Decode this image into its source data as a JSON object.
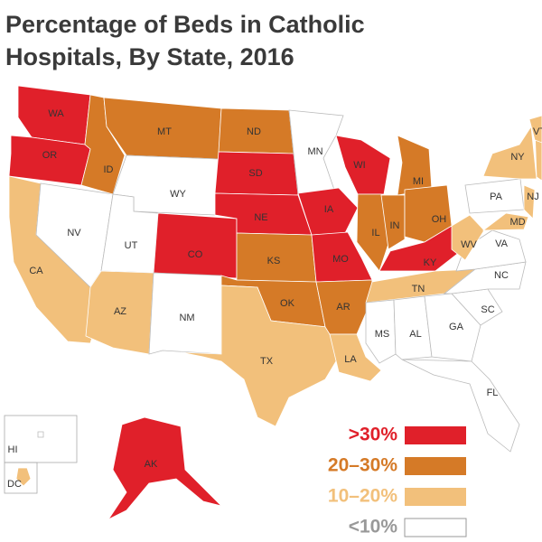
{
  "title": [
    "Percentage of Beds in Catholic",
    "Hospitals, By State, 2016"
  ],
  "legend": [
    {
      "label": ">30%",
      "color": "#e0202a",
      "text_color": "#e0202a"
    },
    {
      "label": "20–30%",
      "color": "#d57a27",
      "text_color": "#d57a27"
    },
    {
      "label": "10–20%",
      "color": "#f2c07b",
      "text_color": "#f2c07b"
    },
    {
      "label": "<10%",
      "color": "#ffffff",
      "text_color": "#999999"
    }
  ],
  "states": [
    {
      "abbr": "WA",
      "category": 0
    },
    {
      "abbr": "OR",
      "category": 0
    },
    {
      "abbr": "CA",
      "category": 2
    },
    {
      "abbr": "NV",
      "category": 3
    },
    {
      "abbr": "ID",
      "category": 1
    },
    {
      "abbr": "MT",
      "category": 1
    },
    {
      "abbr": "WY",
      "category": 3
    },
    {
      "abbr": "UT",
      "category": 3
    },
    {
      "abbr": "AZ",
      "category": 2
    },
    {
      "abbr": "CO",
      "category": 0
    },
    {
      "abbr": "NM",
      "category": 3
    },
    {
      "abbr": "ND",
      "category": 1
    },
    {
      "abbr": "SD",
      "category": 0
    },
    {
      "abbr": "NE",
      "category": 0
    },
    {
      "abbr": "KS",
      "category": 1
    },
    {
      "abbr": "OK",
      "category": 1
    },
    {
      "abbr": "TX",
      "category": 2
    },
    {
      "abbr": "MN",
      "category": 3
    },
    {
      "abbr": "IA",
      "category": 0
    },
    {
      "abbr": "MO",
      "category": 0
    },
    {
      "abbr": "AR",
      "category": 1
    },
    {
      "abbr": "LA",
      "category": 2
    },
    {
      "abbr": "WI",
      "category": 0
    },
    {
      "abbr": "IL",
      "category": 1
    },
    {
      "abbr": "MI",
      "category": 1
    },
    {
      "abbr": "IN",
      "category": 1
    },
    {
      "abbr": "OH",
      "category": 1
    },
    {
      "abbr": "KY",
      "category": 0
    },
    {
      "abbr": "TN",
      "category": 2
    },
    {
      "abbr": "MS",
      "category": 3
    },
    {
      "abbr": "AL",
      "category": 3
    },
    {
      "abbr": "GA",
      "category": 3
    },
    {
      "abbr": "FL",
      "category": 3
    },
    {
      "abbr": "SC",
      "category": 3
    },
    {
      "abbr": "NC",
      "category": 3
    },
    {
      "abbr": "VA",
      "category": 3
    },
    {
      "abbr": "WV",
      "category": 2
    },
    {
      "abbr": "PA",
      "category": 3
    },
    {
      "abbr": "NY",
      "category": 2
    },
    {
      "abbr": "NJ",
      "category": 2
    },
    {
      "abbr": "MD",
      "category": 2
    },
    {
      "abbr": "VT",
      "category": 2
    },
    {
      "abbr": "AK",
      "category": 0
    },
    {
      "abbr": "HI",
      "category": 3
    },
    {
      "abbr": "DC",
      "category": 2
    }
  ]
}
